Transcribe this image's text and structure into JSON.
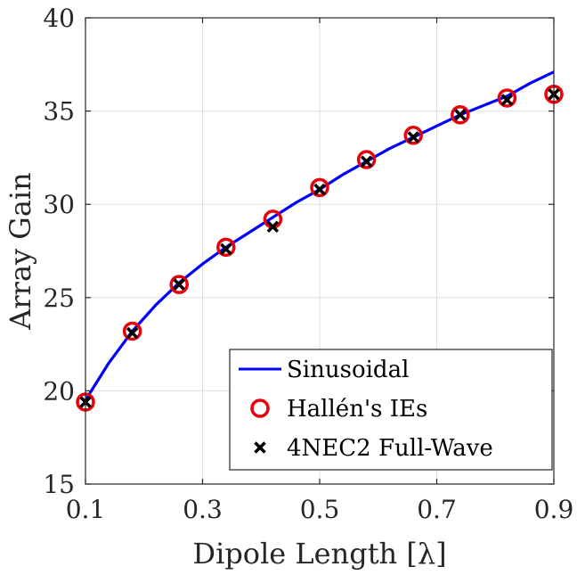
{
  "chart_data": {
    "type": "line",
    "xlabel": "Dipole Length [λ]",
    "ylabel": "Array Gain",
    "xlim": [
      0.1,
      0.9
    ],
    "ylim": [
      15,
      40
    ],
    "xticks": [
      0.1,
      0.3,
      0.5,
      0.7,
      0.9
    ],
    "xtick_labels": [
      "0.1",
      "0.3",
      "0.5",
      "0.7",
      "0.9"
    ],
    "yticks": [
      15,
      20,
      25,
      30,
      35,
      40
    ],
    "ytick_labels": [
      "15",
      "20",
      "25",
      "30",
      "35",
      "40"
    ],
    "grid": true,
    "legend_position": "bottom-right",
    "series": [
      {
        "name": "Sinusoidal",
        "style": "line",
        "color": "#0000ff",
        "x": [
          0.1,
          0.14,
          0.18,
          0.22,
          0.26,
          0.3,
          0.34,
          0.38,
          0.42,
          0.46,
          0.5,
          0.54,
          0.58,
          0.62,
          0.66,
          0.7,
          0.74,
          0.78,
          0.82,
          0.86,
          0.9
        ],
        "y": [
          19.5,
          21.5,
          23.2,
          24.6,
          25.8,
          26.8,
          27.7,
          28.5,
          29.3,
          30.1,
          30.8,
          31.6,
          32.3,
          33.0,
          33.6,
          34.2,
          34.8,
          35.3,
          35.8,
          36.5,
          37.1
        ]
      },
      {
        "name": "Hallén's IEs",
        "style": "circle",
        "color": "#e8000b",
        "x": [
          0.1,
          0.18,
          0.26,
          0.34,
          0.42,
          0.5,
          0.58,
          0.66,
          0.74,
          0.82,
          0.9
        ],
        "y": [
          19.4,
          23.2,
          25.7,
          27.7,
          29.2,
          30.9,
          32.4,
          33.7,
          34.8,
          35.7,
          35.9
        ]
      },
      {
        "name": "4NEC2 Full-Wave",
        "style": "cross",
        "color": "#000000",
        "x": [
          0.1,
          0.18,
          0.26,
          0.34,
          0.42,
          0.5,
          0.58,
          0.66,
          0.74,
          0.82,
          0.9
        ],
        "y": [
          19.4,
          23.1,
          25.7,
          27.6,
          28.8,
          30.8,
          32.3,
          33.6,
          34.8,
          35.6,
          35.9
        ]
      }
    ]
  }
}
